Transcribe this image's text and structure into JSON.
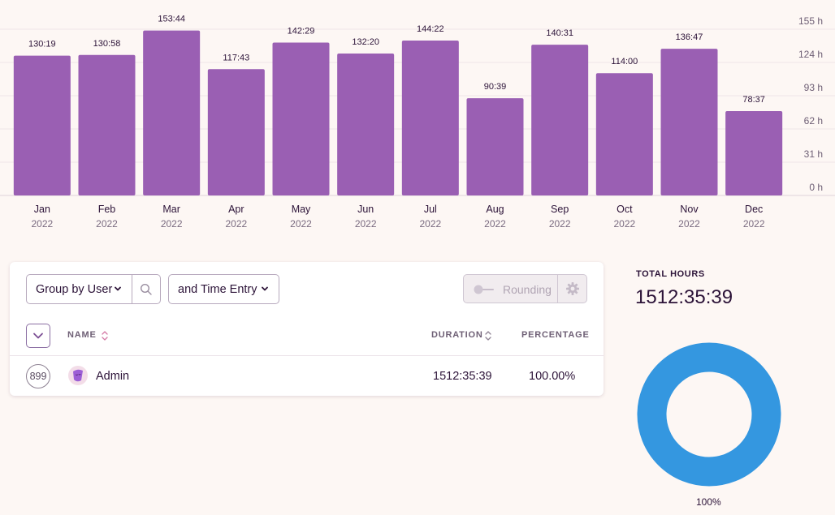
{
  "chart_data": {
    "type": "bar",
    "categories": [
      "Jan",
      "Feb",
      "Mar",
      "Apr",
      "May",
      "Jun",
      "Jul",
      "Aug",
      "Sep",
      "Oct",
      "Nov",
      "Dec"
    ],
    "years": [
      "2022",
      "2022",
      "2022",
      "2022",
      "2022",
      "2022",
      "2022",
      "2022",
      "2022",
      "2022",
      "2022",
      "2022"
    ],
    "values": [
      130.32,
      130.97,
      153.73,
      117.72,
      142.48,
      132.33,
      144.37,
      90.65,
      140.52,
      114.0,
      136.78,
      78.62
    ],
    "value_labels": [
      "130:19",
      "130:58",
      "153:44",
      "117:43",
      "142:29",
      "132:20",
      "144:22",
      "90:39",
      "140:31",
      "114:00",
      "136:47",
      "78:37"
    ],
    "y_ticks": [
      0,
      31,
      62,
      93,
      124,
      155
    ],
    "y_tick_labels": [
      "0 h",
      "31 h",
      "62 h",
      "93 h",
      "124 h",
      "155 h"
    ],
    "ylim": [
      0,
      155
    ],
    "grid": true,
    "color": "#9a5fb3"
  },
  "filters": {
    "group_by_label": "Group by User",
    "then_by_label": "and Time Entry",
    "rounding_label": "Rounding"
  },
  "table": {
    "headers": {
      "name": "NAME",
      "duration": "DURATION",
      "percentage": "PERCENTAGE"
    },
    "rows": [
      {
        "count": "899",
        "name": "Admin",
        "duration": "1512:35:39",
        "percentage": "100.00%",
        "avatar_color": "#9d5fd6"
      }
    ]
  },
  "totals": {
    "title": "TOTAL HOURS",
    "value": "1512:35:39",
    "donut_label": "100%",
    "donut_color": "#3497e0",
    "donut_fraction": 1.0
  },
  "icons": {
    "search": "search-icon",
    "chevron": "chevron-down-icon",
    "gear": "gear-icon",
    "sort": "sort-icon",
    "expand": "expand-all-icon"
  }
}
